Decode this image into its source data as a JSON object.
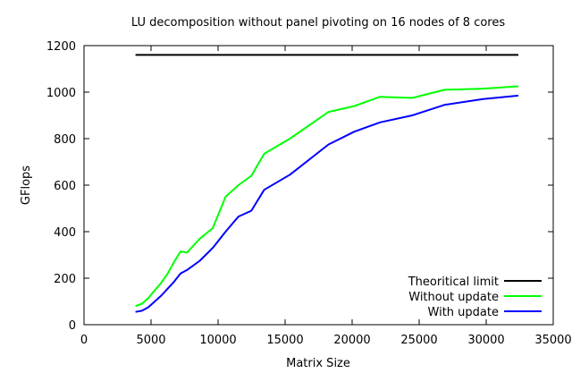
{
  "chart_data": {
    "type": "line",
    "title": "LU decomposition without panel pivoting on 16 nodes of 8 cores",
    "xlabel": "Matrix Size",
    "ylabel": "GFlops",
    "xlim": [
      0,
      35000
    ],
    "ylim": [
      0,
      1200
    ],
    "xticks": [
      0,
      5000,
      10000,
      15000,
      20000,
      25000,
      30000,
      35000
    ],
    "yticks": [
      0,
      200,
      400,
      600,
      800,
      1000,
      1200
    ],
    "grid": false,
    "legend_position": "bottom-right",
    "series": [
      {
        "name": "Theoritical limit",
        "color": "#000000",
        "x": [
          3840,
          32400
        ],
        "y": [
          1160,
          1160
        ]
      },
      {
        "name": "Without update",
        "color": "#00ff00",
        "x": [
          3840,
          4320,
          4800,
          5280,
          5760,
          6240,
          6720,
          7200,
          7680,
          8640,
          9600,
          10560,
          11520,
          12480,
          13440,
          15360,
          18240,
          20160,
          22080,
          24480,
          26880,
          29760,
          32400
        ],
        "y": [
          80,
          90,
          115,
          148,
          180,
          220,
          270,
          315,
          310,
          370,
          415,
          550,
          600,
          640,
          735,
          800,
          915,
          940,
          980,
          975,
          1010,
          1015,
          1025
        ]
      },
      {
        "name": "With update",
        "color": "#0000ff",
        "x": [
          3840,
          4320,
          4800,
          5280,
          5760,
          6240,
          6720,
          7200,
          7680,
          8640,
          9600,
          10560,
          11520,
          12480,
          13440,
          15360,
          18240,
          20160,
          22080,
          24480,
          26880,
          29760,
          32400
        ],
        "y": [
          55,
          60,
          75,
          100,
          125,
          155,
          185,
          220,
          235,
          275,
          330,
          400,
          465,
          490,
          580,
          645,
          775,
          830,
          870,
          900,
          945,
          970,
          985
        ]
      }
    ]
  }
}
